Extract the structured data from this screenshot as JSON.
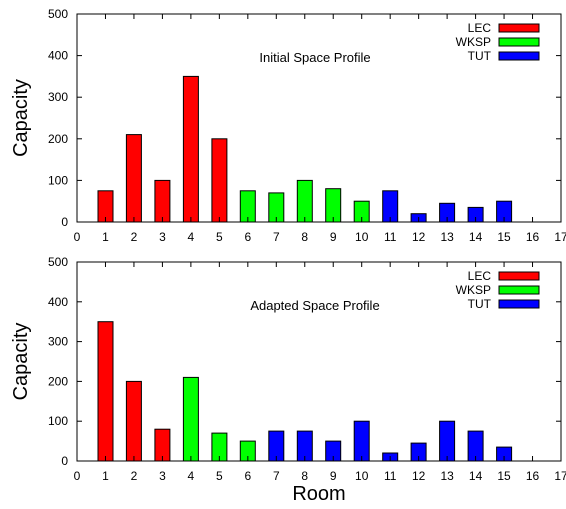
{
  "figure": {
    "xlabel": "Room"
  },
  "colors": {
    "LEC": "#ff0000",
    "WKSP": "#00ff00",
    "TUT": "#0000ff"
  },
  "chart_data": [
    {
      "type": "bar",
      "annotation": "Initial Space Profile",
      "ylabel": "Capacity",
      "xlim": [
        0,
        17
      ],
      "ylim": [
        0,
        500
      ],
      "xticks": [
        0,
        1,
        2,
        3,
        4,
        5,
        6,
        7,
        8,
        9,
        10,
        11,
        12,
        13,
        14,
        15,
        16,
        17
      ],
      "yticks": [
        0,
        100,
        200,
        300,
        400,
        500
      ],
      "legend": {
        "placement": "top-right",
        "entries": [
          "LEC",
          "WKSP",
          "TUT"
        ]
      },
      "series": [
        {
          "name": "LEC",
          "x": [
            1,
            2,
            3,
            4,
            5
          ],
          "values": [
            75,
            210,
            100,
            350,
            200
          ]
        },
        {
          "name": "WKSP",
          "x": [
            6,
            7,
            8,
            9,
            10
          ],
          "values": [
            75,
            70,
            100,
            80,
            50
          ]
        },
        {
          "name": "TUT",
          "x": [
            11,
            12,
            13,
            14,
            15
          ],
          "values": [
            75,
            20,
            45,
            35,
            50
          ]
        }
      ]
    },
    {
      "type": "bar",
      "annotation": "Adapted Space Profile",
      "ylabel": "Capacity",
      "xlabel": "Room",
      "xlim": [
        0,
        17
      ],
      "ylim": [
        0,
        500
      ],
      "xticks": [
        0,
        1,
        2,
        3,
        4,
        5,
        6,
        7,
        8,
        9,
        10,
        11,
        12,
        13,
        14,
        15,
        16,
        17
      ],
      "yticks": [
        0,
        100,
        200,
        300,
        400,
        500
      ],
      "legend": {
        "placement": "top-right",
        "entries": [
          "LEC",
          "WKSP",
          "TUT"
        ]
      },
      "series": [
        {
          "name": "LEC",
          "x": [
            1,
            2,
            3
          ],
          "values": [
            350,
            200,
            80
          ]
        },
        {
          "name": "WKSP",
          "x": [
            4,
            5,
            6
          ],
          "values": [
            210,
            70,
            50
          ]
        },
        {
          "name": "TUT",
          "x": [
            7,
            8,
            9,
            10,
            11,
            12,
            13,
            14,
            15
          ],
          "values": [
            75,
            75,
            50,
            100,
            20,
            45,
            100,
            75,
            35
          ]
        }
      ]
    }
  ]
}
